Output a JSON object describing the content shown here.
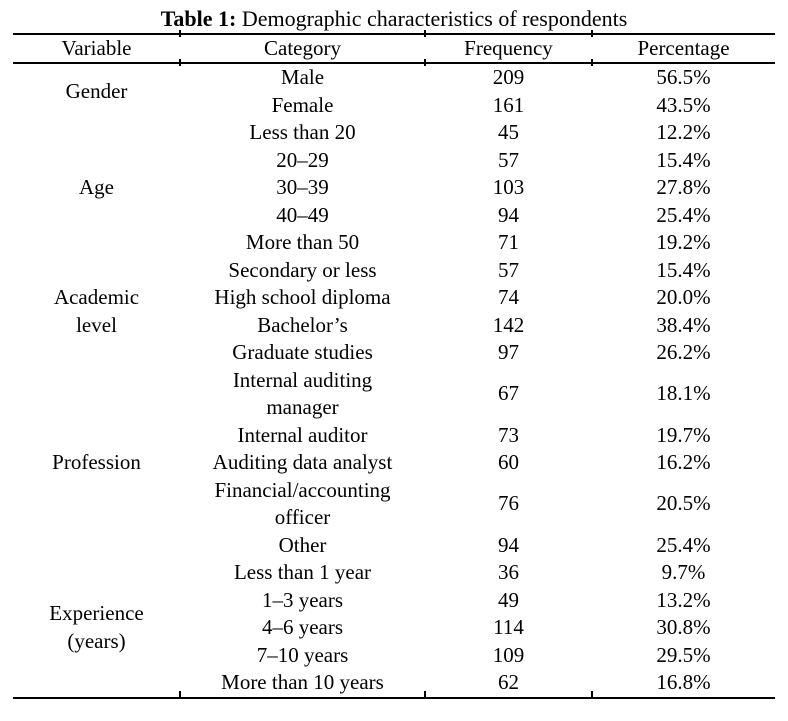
{
  "title": {
    "label": "Table 1:",
    "caption": " Demographic characteristics of respondents"
  },
  "table": {
    "headers": [
      "Variable",
      "Category",
      "Frequency",
      "Percentage"
    ],
    "groups": [
      {
        "variable": "Gender",
        "rows": [
          {
            "category": "Male",
            "frequency": "209",
            "percentage": "56.5%"
          },
          {
            "category": "Female",
            "frequency": "161",
            "percentage": "43.5%"
          }
        ]
      },
      {
        "variable": "Age",
        "rows": [
          {
            "category": "Less than 20",
            "frequency": "45",
            "percentage": "12.2%"
          },
          {
            "category": "20–29",
            "frequency": "57",
            "percentage": "15.4%"
          },
          {
            "category": "30–39",
            "frequency": "103",
            "percentage": "27.8%"
          },
          {
            "category": "40–49",
            "frequency": "94",
            "percentage": "25.4%"
          },
          {
            "category": "More than 50",
            "frequency": "71",
            "percentage": "19.2%"
          }
        ]
      },
      {
        "variable": "Academic\nlevel",
        "rows": [
          {
            "category": "Secondary or less",
            "frequency": "57",
            "percentage": "15.4%"
          },
          {
            "category": "High school diploma",
            "frequency": "74",
            "percentage": "20.0%"
          },
          {
            "category": "Bachelor’s",
            "frequency": "142",
            "percentage": "38.4%"
          },
          {
            "category": "Graduate studies",
            "frequency": "97",
            "percentage": "26.2%"
          }
        ]
      },
      {
        "variable": "Profession",
        "rows": [
          {
            "category": "Internal auditing\nmanager",
            "frequency": "67",
            "percentage": "18.1%"
          },
          {
            "category": "Internal auditor",
            "frequency": "73",
            "percentage": "19.7%"
          },
          {
            "category": "Auditing data analyst",
            "frequency": "60",
            "percentage": "16.2%"
          },
          {
            "category": "Financial/accounting\nofficer",
            "frequency": "76",
            "percentage": "20.5%"
          },
          {
            "category": "Other",
            "frequency": "94",
            "percentage": "25.4%"
          }
        ]
      },
      {
        "variable": "Experience\n(years)",
        "rows": [
          {
            "category": "Less than 1 year",
            "frequency": "36",
            "percentage": "9.7%"
          },
          {
            "category": "1–3 years",
            "frequency": "49",
            "percentage": "13.2%"
          },
          {
            "category": "4–6 years",
            "frequency": "114",
            "percentage": "30.8%"
          },
          {
            "category": "7–10 years",
            "frequency": "109",
            "percentage": "29.5%"
          },
          {
            "category": "More than 10 years",
            "frequency": "62",
            "percentage": "16.8%"
          }
        ]
      }
    ]
  }
}
